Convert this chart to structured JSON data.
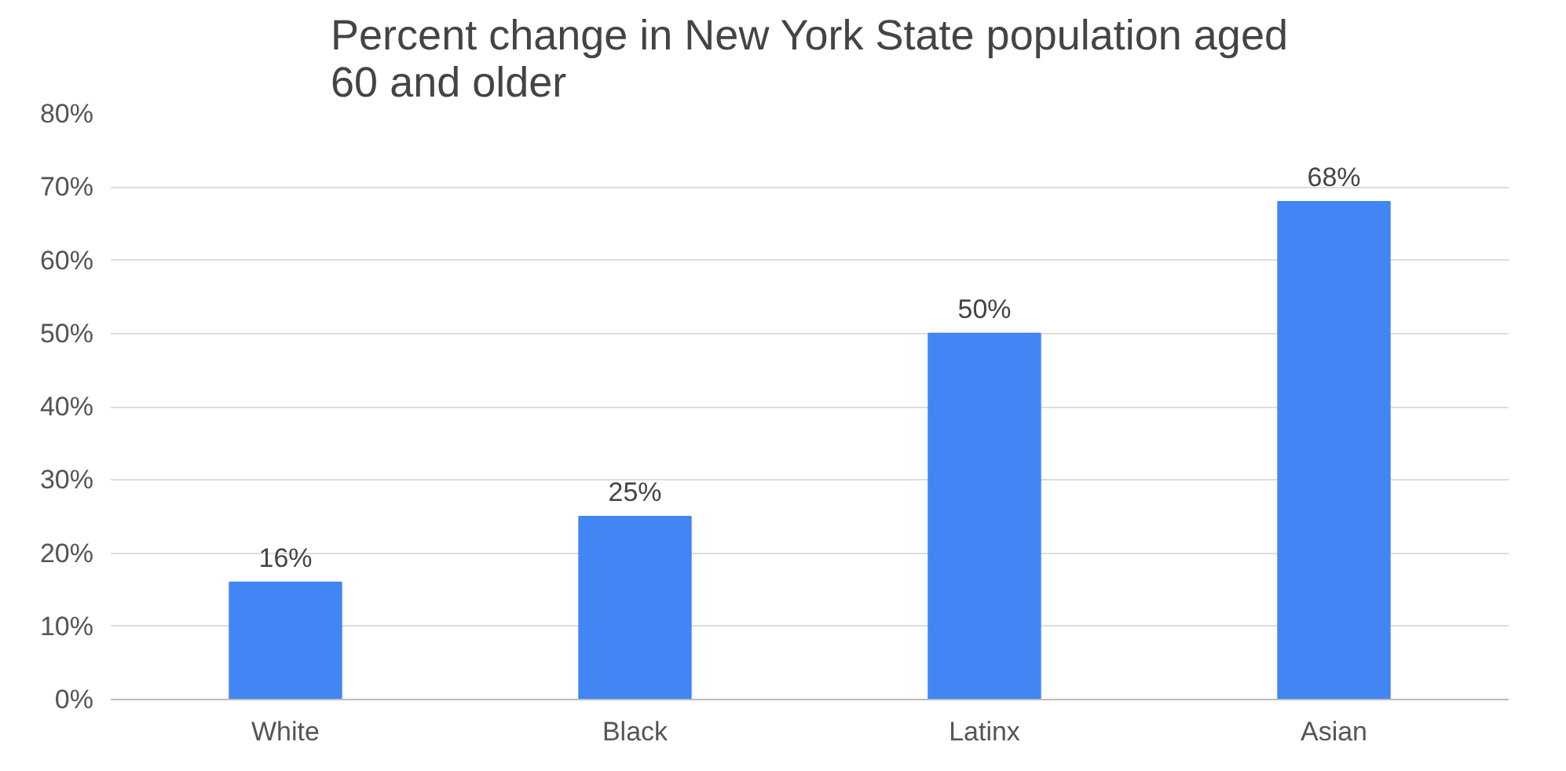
{
  "chart_data": {
    "type": "bar",
    "title": "Percent change in New York State population aged 60 and older",
    "categories": [
      "White",
      "Black",
      "Latinx",
      "Asian"
    ],
    "values": [
      16,
      25,
      50,
      68
    ],
    "value_labels": [
      "16%",
      "25%",
      "50%",
      "68%"
    ],
    "color": "#4285f4",
    "ylim": [
      0,
      80
    ],
    "yticks": [
      {
        "value": 0,
        "label": "0%"
      },
      {
        "value": 10,
        "label": "10%"
      },
      {
        "value": 20,
        "label": "20%"
      },
      {
        "value": 30,
        "label": "30%"
      },
      {
        "value": 40,
        "label": "40%"
      },
      {
        "value": 50,
        "label": "50%"
      },
      {
        "value": 60,
        "label": "60%"
      },
      {
        "value": 70,
        "label": "70%"
      },
      {
        "value": 80,
        "label": "80%"
      }
    ],
    "grid": "y"
  }
}
